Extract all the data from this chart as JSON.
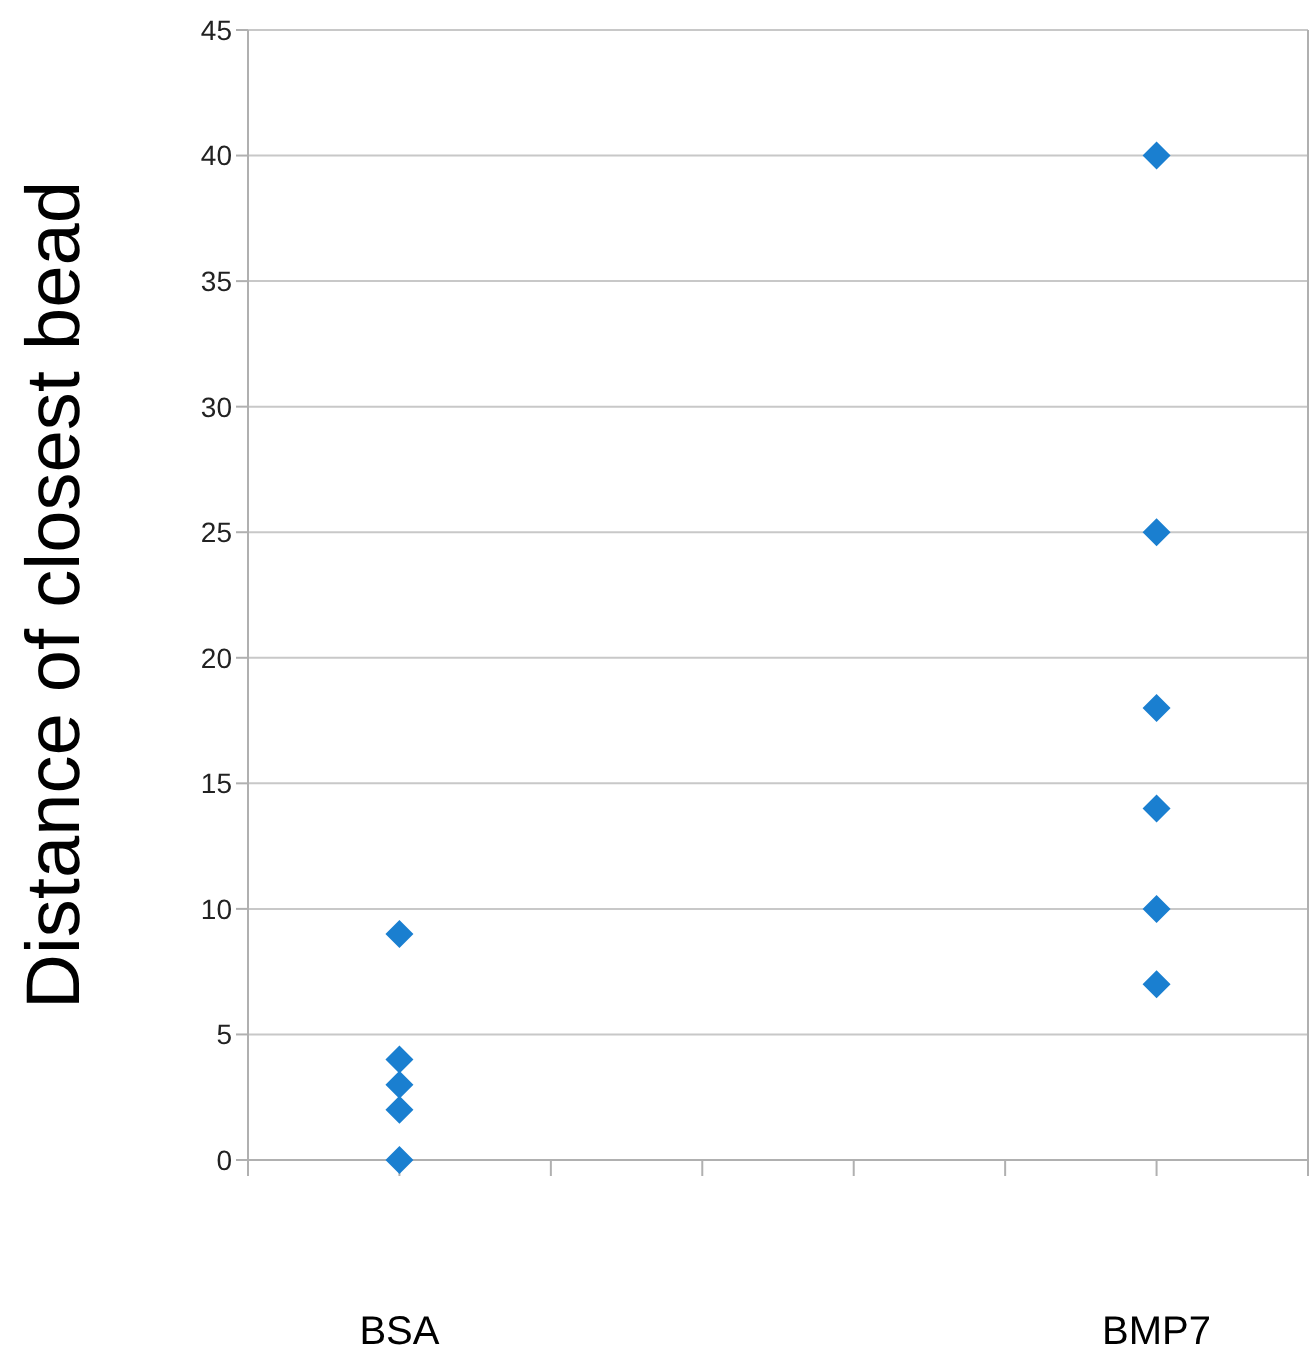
{
  "chart_data": {
    "type": "scatter",
    "ylabel": "Distance of closest bead",
    "categories": [
      null,
      "BSA",
      null,
      null,
      null,
      null,
      "BMP7",
      null
    ],
    "ylim": [
      0,
      45
    ],
    "yticks": [
      0,
      5,
      10,
      15,
      20,
      25,
      30,
      35,
      40,
      45
    ],
    "grid": "y",
    "marker": "diamond",
    "series": [
      {
        "color": "#1a7fd0",
        "x": [
          "BSA",
          "BSA",
          "BSA",
          "BSA",
          "BSA"
        ],
        "values": [
          9,
          4,
          3,
          2,
          0
        ]
      },
      {
        "color": "#1a7fd0",
        "x": [
          "BMP7",
          "BMP7",
          "BMP7",
          "BMP7",
          "BMP7",
          "BMP7"
        ],
        "values": [
          40,
          25,
          18,
          14,
          10,
          7
        ]
      }
    ]
  }
}
